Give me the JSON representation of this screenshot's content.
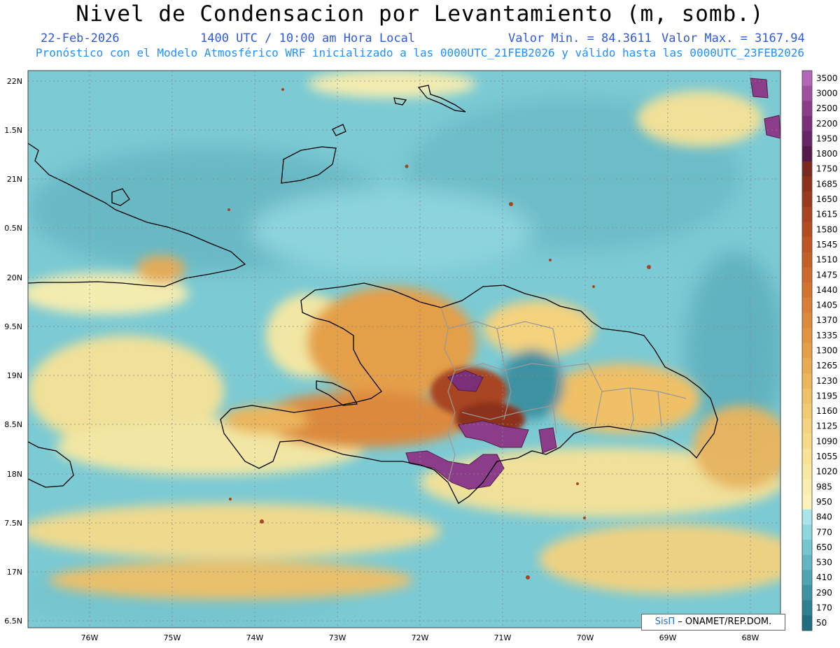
{
  "header": {
    "title": "Nivel de Condensacion por Levantamiento (m, somb.)",
    "date": "22-Feb-2026",
    "time": "1400 UTC / 10:00 am Hora Local",
    "min_label": "Valor Min. = 84.3611",
    "max_label": "Valor Max. = 3167.94",
    "subtitle": "Pronóstico con el Modelo Atmosférico WRF inicializado a las 0000UTC_21FEB2026 y válido hasta las  0000UTC_23FEB2026"
  },
  "axes": {
    "lat_labels": [
      "22N",
      "1.5N",
      "21N",
      "0.5N",
      "20N",
      "9.5N",
      "19N",
      "8.5N",
      "18N",
      "7.5N",
      "17N",
      "6.5N"
    ],
    "lon_labels": [
      "76W",
      "75W",
      "74W",
      "73W",
      "72W",
      "71W",
      "70W",
      "69W",
      "68W"
    ]
  },
  "colorbar": {
    "levels": [
      "3500",
      "3000",
      "2500",
      "2200",
      "1950",
      "1800",
      "1750",
      "1685",
      "1650",
      "1615",
      "1580",
      "1545",
      "1510",
      "1475",
      "1440",
      "1405",
      "1370",
      "1335",
      "1300",
      "1265",
      "1230",
      "1195",
      "1160",
      "1125",
      "1090",
      "1055",
      "1020",
      "985",
      "950",
      "840",
      "770",
      "650",
      "530",
      "410",
      "290",
      "170",
      "50"
    ],
    "colors": [
      "#b366b8",
      "#a0509f",
      "#8c3d8a",
      "#7a2f78",
      "#672466",
      "#551a4a",
      "#7a2a22",
      "#8c321c",
      "#9a3a1e",
      "#a84420",
      "#b44c22",
      "#bd5524",
      "#c55f28",
      "#cc692c",
      "#d27430",
      "#d87e36",
      "#dc893c",
      "#e09442",
      "#e49f4a",
      "#e8aa52",
      "#ecb55c",
      "#f0c066",
      "#f2ca72",
      "#f4d27e",
      "#f5da8a",
      "#f7e296",
      "#f8e8a2",
      "#faeeae",
      "#fbf2ba",
      "#a8e4ea",
      "#8ed6de",
      "#76c6d0",
      "#62b6c2",
      "#4ea4b2",
      "#3c92a2",
      "#2c8092",
      "#1f6e82"
    ]
  },
  "credit": {
    "brand": "SisΠ",
    "text": "– ONAMET/REP.DOM."
  }
}
